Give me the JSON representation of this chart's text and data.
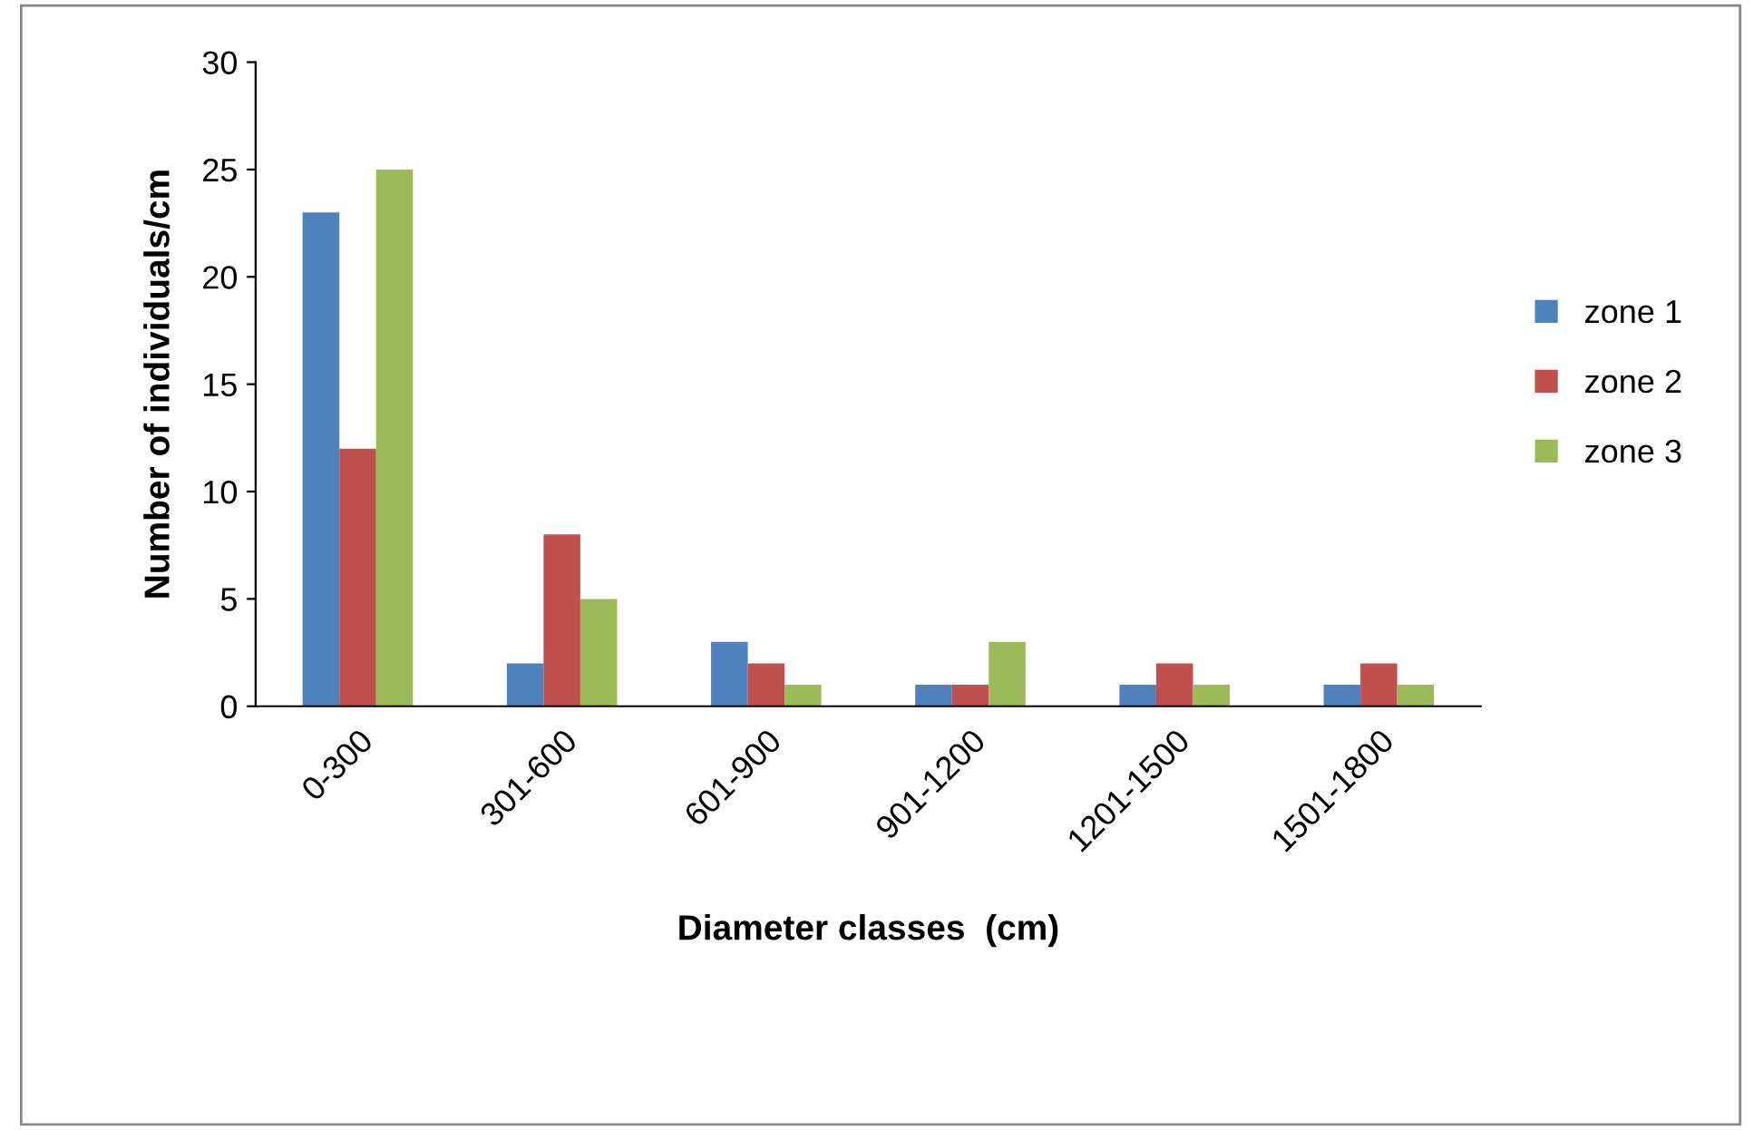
{
  "chart_data": {
    "type": "bar",
    "xlabel": "Diameter classes  (cm)",
    "ylabel": "Number of individuals/cm",
    "categories": [
      "0-300",
      "301-600",
      "601-900",
      "901-1200",
      "1201-1500",
      "1501-1800"
    ],
    "series": [
      {
        "name": "zone 1",
        "color": "#4f81bd",
        "values": [
          23,
          2,
          3,
          1,
          1,
          1
        ]
      },
      {
        "name": "zone 2",
        "color": "#c0504d",
        "values": [
          12,
          8,
          2,
          1,
          2,
          2
        ]
      },
      {
        "name": "zone 3",
        "color": "#9bbb59",
        "values": [
          25,
          5,
          1,
          3,
          1,
          1
        ]
      }
    ],
    "ylim": [
      0,
      30
    ],
    "yticks": [
      0,
      5,
      10,
      15,
      20,
      25,
      30
    ],
    "grid": false,
    "legend": "right"
  }
}
